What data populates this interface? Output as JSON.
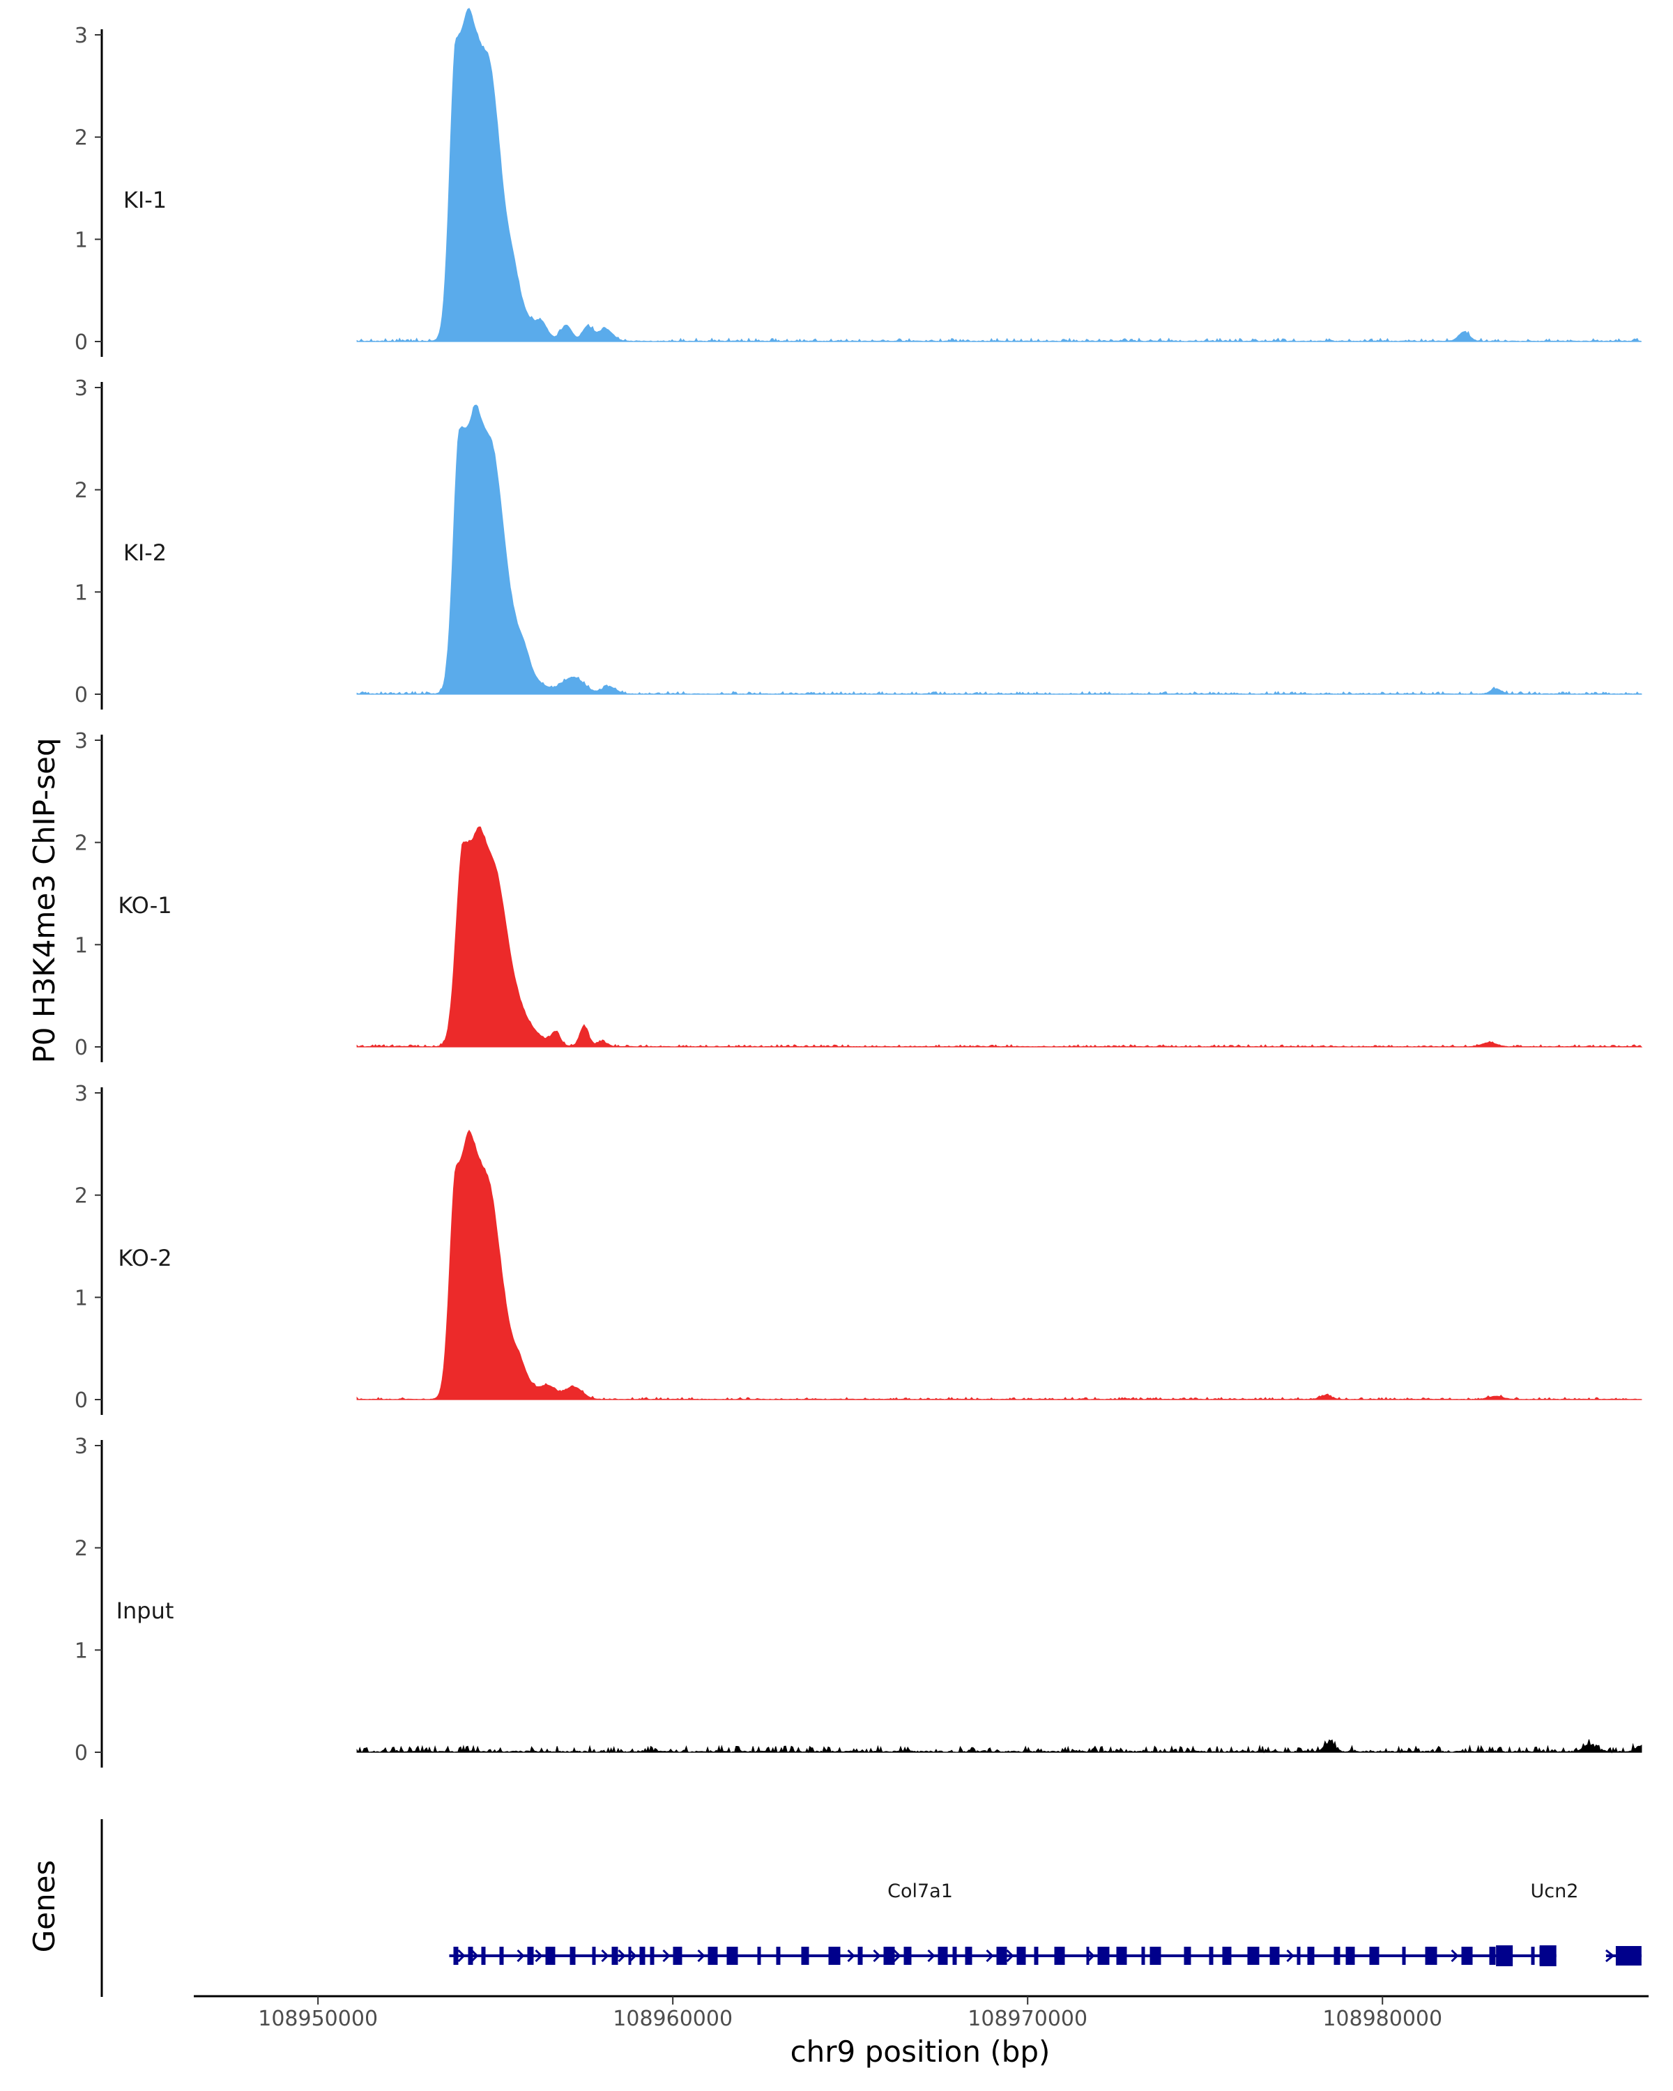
{
  "chart_data": {
    "type": "area",
    "ylabel": "P0 H3K4me3 ChIP-seq",
    "xlabel": "chr9 position (bp)",
    "xlim": [
      108946500,
      108987500
    ],
    "ylim": [
      0,
      3
    ],
    "yticks": [
      0,
      1,
      2,
      3
    ],
    "xticks": [
      108950000,
      108960000,
      108970000,
      108980000
    ],
    "xtick_labels": [
      "108950000",
      "108960000",
      "108970000",
      "108980000"
    ],
    "genes_track_label": "Genes",
    "colors": {
      "KI": "#5aabeb",
      "KO": "#ec2a2a",
      "Input": "#000000",
      "genes": "#00008b",
      "axis": "#000000"
    },
    "series": [
      {
        "name": "KI-1",
        "color": "#5aabeb",
        "peaks": [
          [
            108953900,
            2.95,
            180,
            900
          ],
          [
            108954300,
            0.55,
            150,
            600
          ],
          [
            108954900,
            0.7,
            200,
            250
          ],
          [
            108955500,
            0.15,
            150,
            150
          ],
          [
            108956300,
            0.12,
            150,
            150
          ],
          [
            108957000,
            0.15,
            150,
            150
          ],
          [
            108957600,
            0.14,
            150,
            150
          ],
          [
            108958100,
            0.12,
            200,
            200
          ],
          [
            108982300,
            0.09,
            150,
            150
          ]
        ],
        "noise_seed": 11,
        "noise_amp": 0.03
      },
      {
        "name": "KI-2",
        "color": "#5aabeb",
        "peaks": [
          [
            108954000,
            2.6,
            180,
            900
          ],
          [
            108954500,
            0.55,
            150,
            600
          ],
          [
            108955000,
            0.5,
            200,
            250
          ],
          [
            108955800,
            0.12,
            150,
            150
          ],
          [
            108957200,
            0.16,
            300,
            300
          ],
          [
            108958200,
            0.07,
            200,
            200
          ],
          [
            108983200,
            0.05,
            150,
            150
          ]
        ],
        "noise_seed": 23,
        "noise_amp": 0.025
      },
      {
        "name": "KO-1",
        "color": "#ec2a2a",
        "peaks": [
          [
            108954100,
            2.0,
            200,
            900
          ],
          [
            108954600,
            0.4,
            150,
            500
          ],
          [
            108955100,
            0.3,
            200,
            250
          ],
          [
            108956700,
            0.12,
            120,
            120
          ],
          [
            108957500,
            0.2,
            120,
            120
          ],
          [
            108958000,
            0.05,
            150,
            150
          ],
          [
            108983000,
            0.04,
            200,
            200
          ]
        ],
        "noise_seed": 37,
        "noise_amp": 0.02
      },
      {
        "name": "KO-2",
        "color": "#ec2a2a",
        "peaks": [
          [
            108953900,
            2.27,
            180,
            900
          ],
          [
            108954300,
            0.55,
            150,
            600
          ],
          [
            108954900,
            0.45,
            200,
            250
          ],
          [
            108955700,
            0.08,
            150,
            150
          ],
          [
            108956500,
            0.1,
            200,
            200
          ],
          [
            108957200,
            0.12,
            250,
            250
          ],
          [
            108978400,
            0.04,
            150,
            150
          ],
          [
            108983200,
            0.03,
            200,
            200
          ]
        ],
        "noise_seed": 51,
        "noise_amp": 0.02
      },
      {
        "name": "Input",
        "color": "#000000",
        "peaks": [
          [
            108978500,
            0.08,
            150,
            150
          ],
          [
            108985800,
            0.07,
            150,
            150
          ],
          [
            108987300,
            0.06,
            150,
            150
          ]
        ],
        "noise_seed": 67,
        "noise_amp": 0.06
      }
    ],
    "genes": [
      {
        "name": "Col7a1",
        "start": 108953700,
        "end": 108984900,
        "strand": "+",
        "exon_seed": 97
      },
      {
        "name": "Ucn2",
        "start": 108986300,
        "end": 108987300,
        "strand": "+",
        "exon_seed": 5
      }
    ]
  }
}
